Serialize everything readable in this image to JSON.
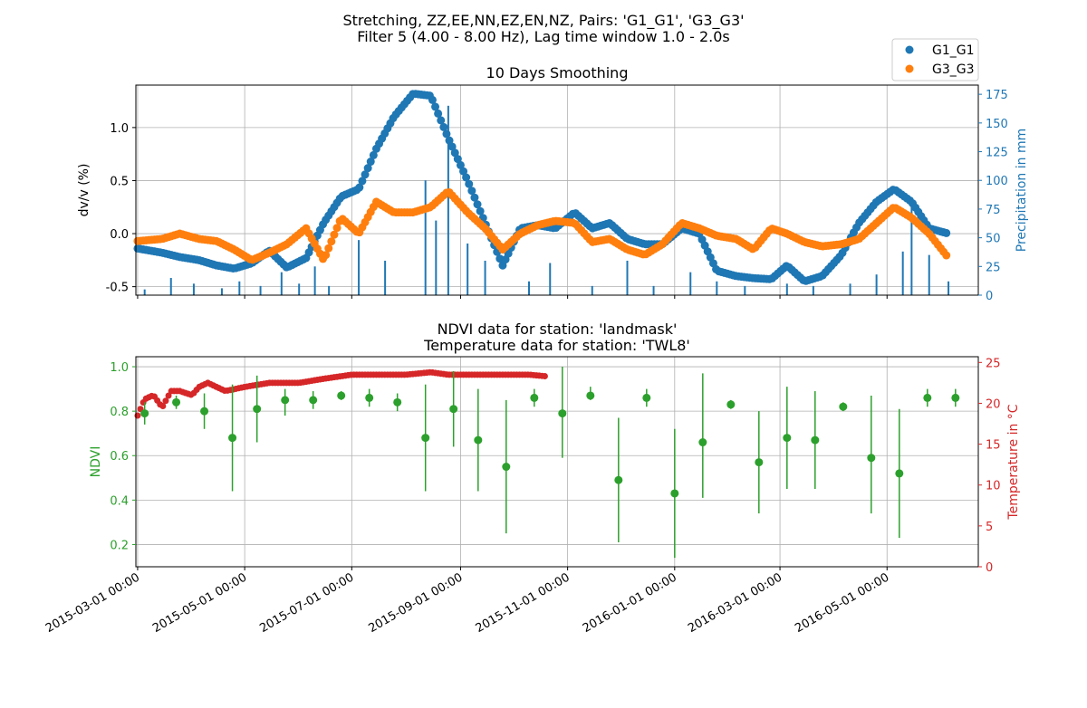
{
  "figure": {
    "suptitle_line1": "Stretching, ZZ,EE,NN,EZ,EN,NZ, Pairs: 'G1_G1', 'G3_G3'",
    "suptitle_line2": "Filter 5 (4.00 - 8.00 Hz), Lag time window 1.0 - 2.0s"
  },
  "colors": {
    "g1": "#1f77b4",
    "g3": "#ff7f0e",
    "ndvi": "#2ca02c",
    "temp": "#d62728",
    "grid": "#b0b0b0"
  },
  "chart_data": [
    {
      "type": "scatter",
      "title": "10 Days Smoothing",
      "ylabel": "dv/v (%)",
      "ylabel_right": "Precipitation in mm",
      "ylim": [
        -0.58,
        1.4
      ],
      "ylim_right": [
        0,
        183
      ],
      "yticks": [
        -0.5,
        0.0,
        0.5,
        1.0
      ],
      "yticks_right": [
        0,
        25,
        50,
        75,
        100,
        125,
        150,
        175
      ],
      "grid": true,
      "legend_position": "top-right outside",
      "legend": [
        {
          "name": "G1_G1",
          "color": "#1f77b4"
        },
        {
          "name": "G3_G3",
          "color": "#ff7f0e"
        }
      ],
      "series": [
        {
          "name": "G1_G1",
          "x": [
            "2015-03-01",
            "2015-03-15",
            "2015-03-25",
            "2015-04-05",
            "2015-04-15",
            "2015-04-25",
            "2015-05-05",
            "2015-05-15",
            "2015-05-25",
            "2015-06-05",
            "2015-06-15",
            "2015-06-25",
            "2015-07-05",
            "2015-07-15",
            "2015-07-25",
            "2015-08-05",
            "2015-08-15",
            "2015-08-25",
            "2015-09-05",
            "2015-09-15",
            "2015-09-25",
            "2015-10-05",
            "2015-10-15",
            "2015-10-25",
            "2015-11-05",
            "2015-11-15",
            "2015-11-25",
            "2015-12-05",
            "2015-12-15",
            "2015-12-25",
            "2016-01-05",
            "2016-01-15",
            "2016-01-25",
            "2016-02-05",
            "2016-02-15",
            "2016-02-25",
            "2016-03-05",
            "2016-03-15",
            "2016-03-25",
            "2016-04-05",
            "2016-04-15",
            "2016-04-25",
            "2016-05-05",
            "2016-05-15",
            "2016-05-25",
            "2016-06-05"
          ],
          "values": [
            -0.14,
            -0.18,
            -0.22,
            -0.25,
            -0.3,
            -0.33,
            -0.28,
            -0.16,
            -0.32,
            -0.23,
            0.1,
            0.35,
            0.42,
            0.8,
            1.1,
            1.32,
            1.3,
            0.9,
            0.5,
            0.1,
            -0.3,
            0.05,
            0.08,
            0.05,
            0.2,
            0.05,
            0.1,
            -0.05,
            -0.1,
            -0.1,
            0.05,
            0.0,
            -0.35,
            -0.4,
            -0.42,
            -0.43,
            -0.3,
            -0.45,
            -0.4,
            -0.2,
            0.1,
            0.3,
            0.42,
            0.3,
            0.05,
            0.0
          ]
        },
        {
          "name": "G3_G3",
          "x": [
            "2015-03-01",
            "2015-03-15",
            "2015-03-25",
            "2015-04-05",
            "2015-04-15",
            "2015-04-25",
            "2015-05-05",
            "2015-05-15",
            "2015-05-25",
            "2015-06-05",
            "2015-06-15",
            "2015-06-25",
            "2015-07-05",
            "2015-07-15",
            "2015-07-25",
            "2015-08-05",
            "2015-08-15",
            "2015-08-25",
            "2015-09-05",
            "2015-09-15",
            "2015-09-25",
            "2015-10-05",
            "2015-10-15",
            "2015-10-25",
            "2015-11-05",
            "2015-11-15",
            "2015-11-25",
            "2015-12-05",
            "2015-12-15",
            "2015-12-25",
            "2016-01-05",
            "2016-01-15",
            "2016-01-25",
            "2016-02-05",
            "2016-02-15",
            "2016-02-25",
            "2016-03-05",
            "2016-03-15",
            "2016-03-25",
            "2016-04-05",
            "2016-04-15",
            "2016-04-25",
            "2016-05-05",
            "2016-05-15",
            "2016-05-25",
            "2016-06-05"
          ],
          "values": [
            -0.07,
            -0.05,
            0.0,
            -0.05,
            -0.07,
            -0.15,
            -0.25,
            -0.18,
            -0.1,
            0.05,
            -0.25,
            0.15,
            0.0,
            0.3,
            0.2,
            0.2,
            0.25,
            0.4,
            0.2,
            0.05,
            -0.15,
            0.0,
            0.08,
            0.12,
            0.1,
            -0.08,
            -0.05,
            -0.15,
            -0.2,
            -0.1,
            0.1,
            0.05,
            -0.02,
            -0.05,
            -0.15,
            0.05,
            0.0,
            -0.08,
            -0.12,
            -0.1,
            -0.05,
            0.1,
            0.25,
            0.15,
            0.0,
            -0.23
          ]
        }
      ],
      "bars": {
        "name": "Precipitation",
        "x": [
          "2015-03-05",
          "2015-03-20",
          "2015-04-02",
          "2015-04-18",
          "2015-04-28",
          "2015-05-10",
          "2015-05-22",
          "2015-06-01",
          "2015-06-10",
          "2015-06-18",
          "2015-07-05",
          "2015-07-20",
          "2015-08-12",
          "2015-08-18",
          "2015-08-25",
          "2015-09-05",
          "2015-09-15",
          "2015-10-10",
          "2015-10-22",
          "2015-11-15",
          "2015-12-05",
          "2015-12-20",
          "2016-01-10",
          "2016-01-25",
          "2016-02-10",
          "2016-03-05",
          "2016-03-20",
          "2016-04-10",
          "2016-04-25",
          "2016-05-10",
          "2016-05-15",
          "2016-05-25",
          "2016-06-05"
        ],
        "values": [
          5,
          15,
          10,
          6,
          12,
          8,
          20,
          10,
          25,
          8,
          48,
          30,
          100,
          65,
          165,
          45,
          30,
          12,
          28,
          8,
          30,
          8,
          20,
          12,
          8,
          10,
          8,
          10,
          18,
          38,
          80,
          35,
          12
        ]
      }
    },
    {
      "type": "scatter",
      "title": "NDVI data for station: 'landmask'",
      "title_line2": "Temperature data for station: 'TWL8'",
      "ylabel": "NDVI",
      "ylabel_right": "Temperature in °C",
      "ylim": [
        0.1,
        1.045
      ],
      "ylim_right": [
        0,
        25.7
      ],
      "yticks": [
        0.2,
        0.4,
        0.6,
        0.8,
        1.0
      ],
      "yticks_right": [
        0,
        5,
        10,
        15,
        20,
        25
      ],
      "xlim": [
        "2015-02-28",
        "2016-06-22"
      ],
      "xticks": [
        "2015-03-01 00:00",
        "2015-05-01 00:00",
        "2015-07-01 00:00",
        "2015-09-01 00:00",
        "2015-11-01 00:00",
        "2016-01-01 00:00",
        "2016-03-01 00:00",
        "2016-05-01 00:00"
      ],
      "grid": true,
      "ndvi": {
        "name": "NDVI",
        "x": [
          "2015-03-05",
          "2015-03-23",
          "2015-04-08",
          "2015-04-24",
          "2015-05-08",
          "2015-05-24",
          "2015-06-09",
          "2015-06-25",
          "2015-07-11",
          "2015-07-27",
          "2015-08-12",
          "2015-08-28",
          "2015-09-11",
          "2015-09-27",
          "2015-10-13",
          "2015-10-29",
          "2015-11-14",
          "2015-11-30",
          "2015-12-16",
          "2016-01-01",
          "2016-01-17",
          "2016-02-02",
          "2016-02-18",
          "2016-03-05",
          "2016-03-21",
          "2016-04-06",
          "2016-04-22",
          "2016-05-08",
          "2016-05-24",
          "2016-06-09"
        ],
        "values": [
          0.79,
          0.84,
          0.8,
          0.68,
          0.81,
          0.85,
          0.85,
          0.87,
          0.86,
          0.84,
          0.68,
          0.81,
          0.67,
          0.55,
          0.86,
          0.79,
          0.87,
          0.49,
          0.86,
          0.43,
          0.66,
          0.83,
          0.57,
          0.68,
          0.67,
          0.82,
          0.59,
          0.52,
          0.86,
          0.86
        ],
        "err_low": [
          0.74,
          0.81,
          0.72,
          0.44,
          0.66,
          0.78,
          0.81,
          0.85,
          0.82,
          0.8,
          0.44,
          0.64,
          0.44,
          0.25,
          0.82,
          0.59,
          0.85,
          0.21,
          0.82,
          0.14,
          0.41,
          0.81,
          0.34,
          0.45,
          0.45,
          0.8,
          0.34,
          0.23,
          0.82,
          0.82
        ],
        "err_high": [
          0.84,
          0.87,
          0.88,
          0.92,
          0.96,
          0.9,
          0.89,
          0.89,
          0.9,
          0.88,
          0.92,
          0.98,
          0.9,
          0.85,
          0.9,
          1.0,
          0.91,
          0.77,
          0.9,
          0.72,
          0.97,
          0.85,
          0.8,
          0.91,
          0.89,
          0.84,
          0.87,
          0.81,
          0.9,
          0.9
        ]
      },
      "temperature": {
        "name": "Temperature",
        "x": [
          "2015-03-01",
          "2015-03-05",
          "2015-03-10",
          "2015-03-15",
          "2015-03-20",
          "2015-03-25",
          "2015-04-01",
          "2015-04-05",
          "2015-04-10",
          "2015-04-15",
          "2015-04-20",
          "2015-05-01",
          "2015-05-15",
          "2015-06-01",
          "2015-06-15",
          "2015-07-01",
          "2015-07-15",
          "2015-08-01",
          "2015-08-15",
          "2015-08-25",
          "2015-09-01",
          "2015-09-15",
          "2015-10-01",
          "2015-10-10",
          "2015-10-20"
        ],
        "values": [
          18.5,
          20.5,
          21.0,
          19.5,
          21.5,
          21.5,
          21.0,
          22.0,
          22.5,
          22.0,
          21.5,
          22.0,
          22.5,
          22.5,
          23.0,
          23.5,
          23.5,
          23.5,
          23.8,
          23.5,
          23.5,
          23.5,
          23.5,
          23.5,
          23.3
        ]
      }
    }
  ]
}
